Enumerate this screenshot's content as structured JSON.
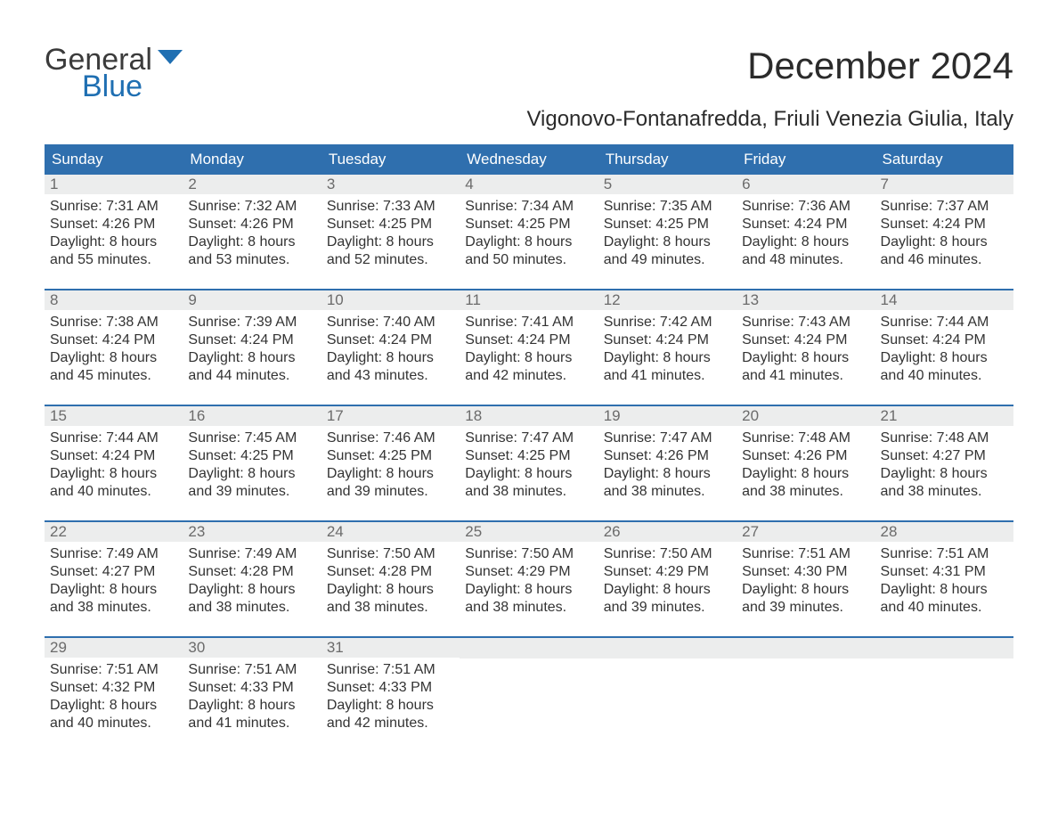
{
  "logo": {
    "general": "General",
    "blue": "Blue"
  },
  "title": "December 2024",
  "subtitle": "Vigonovo-Fontanafredda, Friuli Venezia Giulia, Italy",
  "colors": {
    "header_bg": "#2f6fae",
    "header_text": "#ffffff",
    "daynum_bg": "#eceded",
    "daynum_text": "#6b6b6b",
    "body_text": "#333333",
    "rule": "#2f6fae",
    "logo_blue": "#1f6fb2",
    "logo_dark": "#3b3b3b",
    "page_bg": "#ffffff"
  },
  "typography": {
    "title_fontsize": 42,
    "subtitle_fontsize": 24,
    "dayheader_fontsize": 17,
    "daynum_fontsize": 17,
    "cell_fontsize": 16,
    "logo_fontsize": 34
  },
  "day_headers": [
    "Sunday",
    "Monday",
    "Tuesday",
    "Wednesday",
    "Thursday",
    "Friday",
    "Saturday"
  ],
  "weeks": [
    [
      {
        "n": "1",
        "sr": "Sunrise: 7:31 AM",
        "ss": "Sunset: 4:26 PM",
        "d1": "Daylight: 8 hours",
        "d2": "and 55 minutes."
      },
      {
        "n": "2",
        "sr": "Sunrise: 7:32 AM",
        "ss": "Sunset: 4:26 PM",
        "d1": "Daylight: 8 hours",
        "d2": "and 53 minutes."
      },
      {
        "n": "3",
        "sr": "Sunrise: 7:33 AM",
        "ss": "Sunset: 4:25 PM",
        "d1": "Daylight: 8 hours",
        "d2": "and 52 minutes."
      },
      {
        "n": "4",
        "sr": "Sunrise: 7:34 AM",
        "ss": "Sunset: 4:25 PM",
        "d1": "Daylight: 8 hours",
        "d2": "and 50 minutes."
      },
      {
        "n": "5",
        "sr": "Sunrise: 7:35 AM",
        "ss": "Sunset: 4:25 PM",
        "d1": "Daylight: 8 hours",
        "d2": "and 49 minutes."
      },
      {
        "n": "6",
        "sr": "Sunrise: 7:36 AM",
        "ss": "Sunset: 4:24 PM",
        "d1": "Daylight: 8 hours",
        "d2": "and 48 minutes."
      },
      {
        "n": "7",
        "sr": "Sunrise: 7:37 AM",
        "ss": "Sunset: 4:24 PM",
        "d1": "Daylight: 8 hours",
        "d2": "and 46 minutes."
      }
    ],
    [
      {
        "n": "8",
        "sr": "Sunrise: 7:38 AM",
        "ss": "Sunset: 4:24 PM",
        "d1": "Daylight: 8 hours",
        "d2": "and 45 minutes."
      },
      {
        "n": "9",
        "sr": "Sunrise: 7:39 AM",
        "ss": "Sunset: 4:24 PM",
        "d1": "Daylight: 8 hours",
        "d2": "and 44 minutes."
      },
      {
        "n": "10",
        "sr": "Sunrise: 7:40 AM",
        "ss": "Sunset: 4:24 PM",
        "d1": "Daylight: 8 hours",
        "d2": "and 43 minutes."
      },
      {
        "n": "11",
        "sr": "Sunrise: 7:41 AM",
        "ss": "Sunset: 4:24 PM",
        "d1": "Daylight: 8 hours",
        "d2": "and 42 minutes."
      },
      {
        "n": "12",
        "sr": "Sunrise: 7:42 AM",
        "ss": "Sunset: 4:24 PM",
        "d1": "Daylight: 8 hours",
        "d2": "and 41 minutes."
      },
      {
        "n": "13",
        "sr": "Sunrise: 7:43 AM",
        "ss": "Sunset: 4:24 PM",
        "d1": "Daylight: 8 hours",
        "d2": "and 41 minutes."
      },
      {
        "n": "14",
        "sr": "Sunrise: 7:44 AM",
        "ss": "Sunset: 4:24 PM",
        "d1": "Daylight: 8 hours",
        "d2": "and 40 minutes."
      }
    ],
    [
      {
        "n": "15",
        "sr": "Sunrise: 7:44 AM",
        "ss": "Sunset: 4:24 PM",
        "d1": "Daylight: 8 hours",
        "d2": "and 40 minutes."
      },
      {
        "n": "16",
        "sr": "Sunrise: 7:45 AM",
        "ss": "Sunset: 4:25 PM",
        "d1": "Daylight: 8 hours",
        "d2": "and 39 minutes."
      },
      {
        "n": "17",
        "sr": "Sunrise: 7:46 AM",
        "ss": "Sunset: 4:25 PM",
        "d1": "Daylight: 8 hours",
        "d2": "and 39 minutes."
      },
      {
        "n": "18",
        "sr": "Sunrise: 7:47 AM",
        "ss": "Sunset: 4:25 PM",
        "d1": "Daylight: 8 hours",
        "d2": "and 38 minutes."
      },
      {
        "n": "19",
        "sr": "Sunrise: 7:47 AM",
        "ss": "Sunset: 4:26 PM",
        "d1": "Daylight: 8 hours",
        "d2": "and 38 minutes."
      },
      {
        "n": "20",
        "sr": "Sunrise: 7:48 AM",
        "ss": "Sunset: 4:26 PM",
        "d1": "Daylight: 8 hours",
        "d2": "and 38 minutes."
      },
      {
        "n": "21",
        "sr": "Sunrise: 7:48 AM",
        "ss": "Sunset: 4:27 PM",
        "d1": "Daylight: 8 hours",
        "d2": "and 38 minutes."
      }
    ],
    [
      {
        "n": "22",
        "sr": "Sunrise: 7:49 AM",
        "ss": "Sunset: 4:27 PM",
        "d1": "Daylight: 8 hours",
        "d2": "and 38 minutes."
      },
      {
        "n": "23",
        "sr": "Sunrise: 7:49 AM",
        "ss": "Sunset: 4:28 PM",
        "d1": "Daylight: 8 hours",
        "d2": "and 38 minutes."
      },
      {
        "n": "24",
        "sr": "Sunrise: 7:50 AM",
        "ss": "Sunset: 4:28 PM",
        "d1": "Daylight: 8 hours",
        "d2": "and 38 minutes."
      },
      {
        "n": "25",
        "sr": "Sunrise: 7:50 AM",
        "ss": "Sunset: 4:29 PM",
        "d1": "Daylight: 8 hours",
        "d2": "and 38 minutes."
      },
      {
        "n": "26",
        "sr": "Sunrise: 7:50 AM",
        "ss": "Sunset: 4:29 PM",
        "d1": "Daylight: 8 hours",
        "d2": "and 39 minutes."
      },
      {
        "n": "27",
        "sr": "Sunrise: 7:51 AM",
        "ss": "Sunset: 4:30 PM",
        "d1": "Daylight: 8 hours",
        "d2": "and 39 minutes."
      },
      {
        "n": "28",
        "sr": "Sunrise: 7:51 AM",
        "ss": "Sunset: 4:31 PM",
        "d1": "Daylight: 8 hours",
        "d2": "and 40 minutes."
      }
    ],
    [
      {
        "n": "29",
        "sr": "Sunrise: 7:51 AM",
        "ss": "Sunset: 4:32 PM",
        "d1": "Daylight: 8 hours",
        "d2": "and 40 minutes."
      },
      {
        "n": "30",
        "sr": "Sunrise: 7:51 AM",
        "ss": "Sunset: 4:33 PM",
        "d1": "Daylight: 8 hours",
        "d2": "and 41 minutes."
      },
      {
        "n": "31",
        "sr": "Sunrise: 7:51 AM",
        "ss": "Sunset: 4:33 PM",
        "d1": "Daylight: 8 hours",
        "d2": "and 42 minutes."
      },
      {
        "empty": true
      },
      {
        "empty": true
      },
      {
        "empty": true
      },
      {
        "empty": true
      }
    ]
  ]
}
